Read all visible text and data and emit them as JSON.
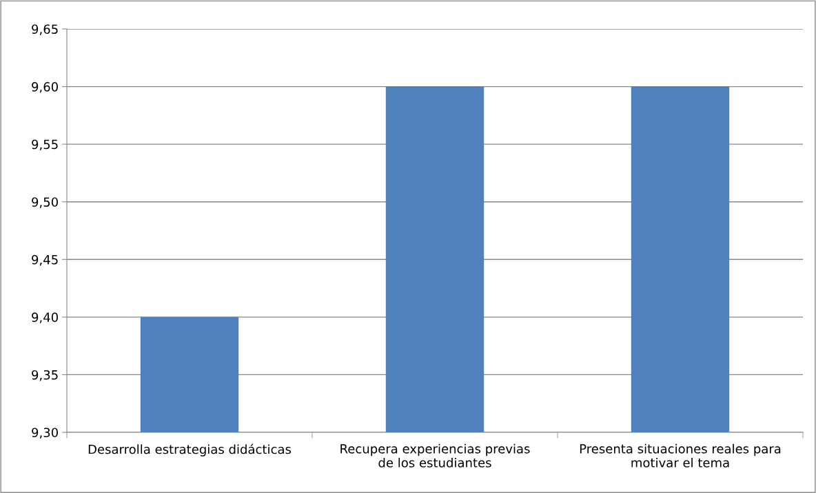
{
  "chart_data": {
    "type": "bar",
    "categories": [
      "Desarrolla estrategias didácticas",
      "Recupera experiencias previas\nde los estudiantes",
      "Presenta situaciones reales para\nmotivar el tema"
    ],
    "values": [
      9.4,
      9.6,
      9.6
    ],
    "color": "#4f81bd",
    "ylim": [
      9.3,
      9.65
    ],
    "yticks": [
      {
        "value": 9.3,
        "label": "9,30"
      },
      {
        "value": 9.35,
        "label": "9,35"
      },
      {
        "value": 9.4,
        "label": "9,40"
      },
      {
        "value": 9.45,
        "label": "9,45"
      },
      {
        "value": 9.5,
        "label": "9,50"
      },
      {
        "value": 9.55,
        "label": "9,55"
      },
      {
        "value": 9.6,
        "label": "9,60"
      },
      {
        "value": 9.65,
        "label": "9,65"
      }
    ],
    "grid": "y",
    "legend": false
  }
}
